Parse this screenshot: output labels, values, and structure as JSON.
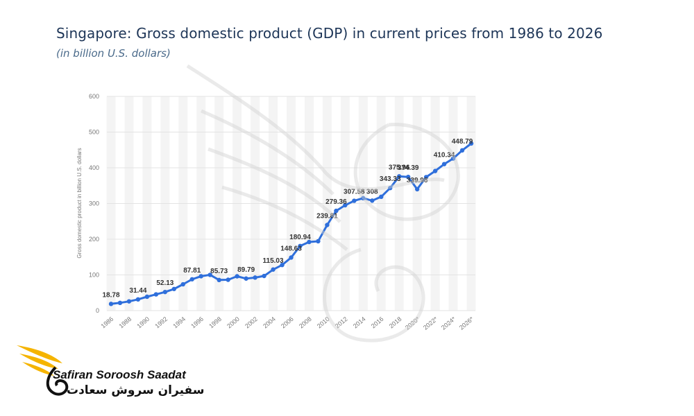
{
  "header": {
    "title": "Singapore: Gross domestic product (GDP) in current prices from 1986 to 2026",
    "subtitle": "(in billion U.S. dollars)"
  },
  "logo": {
    "name_en": "Safiran Soroosh Saadat",
    "name_fa": "سفیران سروش سعادت",
    "accent_color": "#f5b400"
  },
  "colors": {
    "line": "#2f6fdb",
    "grid": "#e3e3e3",
    "band": "#f4f4f4",
    "label": "#333333",
    "axis_text": "#777777"
  },
  "chart_data": {
    "type": "line",
    "ylabel": "Gross domestic product in billion U.S. dollars",
    "ylim": [
      0,
      600
    ],
    "yticks": [
      "0",
      "100",
      "200",
      "300",
      "400",
      "500",
      "600"
    ],
    "grid": true,
    "x": [
      "1986",
      "1987",
      "1988",
      "1989",
      "1990",
      "1991",
      "1992",
      "1993",
      "1994",
      "1995",
      "1996",
      "1997",
      "1998",
      "1999",
      "2000",
      "2001",
      "2002",
      "2003",
      "2004",
      "2005",
      "2006",
      "2007",
      "2008",
      "2009",
      "2010",
      "2011",
      "2012",
      "2013",
      "2014",
      "2015",
      "2016",
      "2017",
      "2018",
      "2019",
      "2020*",
      "2021*",
      "2022*",
      "2023*",
      "2024*",
      "2025*",
      "2026*"
    ],
    "xtick_labels": [
      "1986",
      "1988",
      "1990",
      "1992",
      "1994",
      "1996",
      "1998",
      "2000",
      "2002",
      "2004",
      "2006",
      "2008",
      "2010",
      "2012",
      "2014",
      "2016",
      "2018",
      "2020*",
      "2022*",
      "2024*",
      "2026*"
    ],
    "values": [
      18.78,
      21.7,
      25.9,
      31.44,
      38.9,
      45.5,
      52.13,
      60.6,
      73.7,
      87.81,
      96.3,
      100.1,
      85.73,
      86.4,
      96.1,
      89.79,
      92.5,
      97.0,
      115.03,
      127.8,
      148.63,
      180.94,
      192.2,
      194.2,
      239.81,
      279.36,
      295.1,
      307.58,
      314.9,
      308,
      318.8,
      343.33,
      375.96,
      374.39,
      339.98,
      374.0,
      391.0,
      410.34,
      426.0,
      448.79,
      468.0
    ],
    "data_labels": [
      {
        "x": "1986",
        "text": "18.78"
      },
      {
        "x": "1989",
        "text": "31.44"
      },
      {
        "x": "1992",
        "text": "52.13"
      },
      {
        "x": "1995",
        "text": "87.81"
      },
      {
        "x": "1998",
        "text": "85.73"
      },
      {
        "x": "2001",
        "text": "89.79"
      },
      {
        "x": "2004",
        "text": "115.03"
      },
      {
        "x": "2006",
        "text": "148.63"
      },
      {
        "x": "2007",
        "text": "180.94"
      },
      {
        "x": "2010",
        "text": "239.81"
      },
      {
        "x": "2011",
        "text": "279.36"
      },
      {
        "x": "2013",
        "text": "307.58"
      },
      {
        "x": "2015",
        "text": "308"
      },
      {
        "x": "2017",
        "text": "343.33"
      },
      {
        "x": "2018",
        "text": "375.96"
      },
      {
        "x": "2020*",
        "text": "339.98"
      },
      {
        "x": "2019",
        "text": "374.39"
      },
      {
        "x": "2023*",
        "text": "410.34"
      },
      {
        "x": "2025*",
        "text": "448.79"
      }
    ]
  }
}
